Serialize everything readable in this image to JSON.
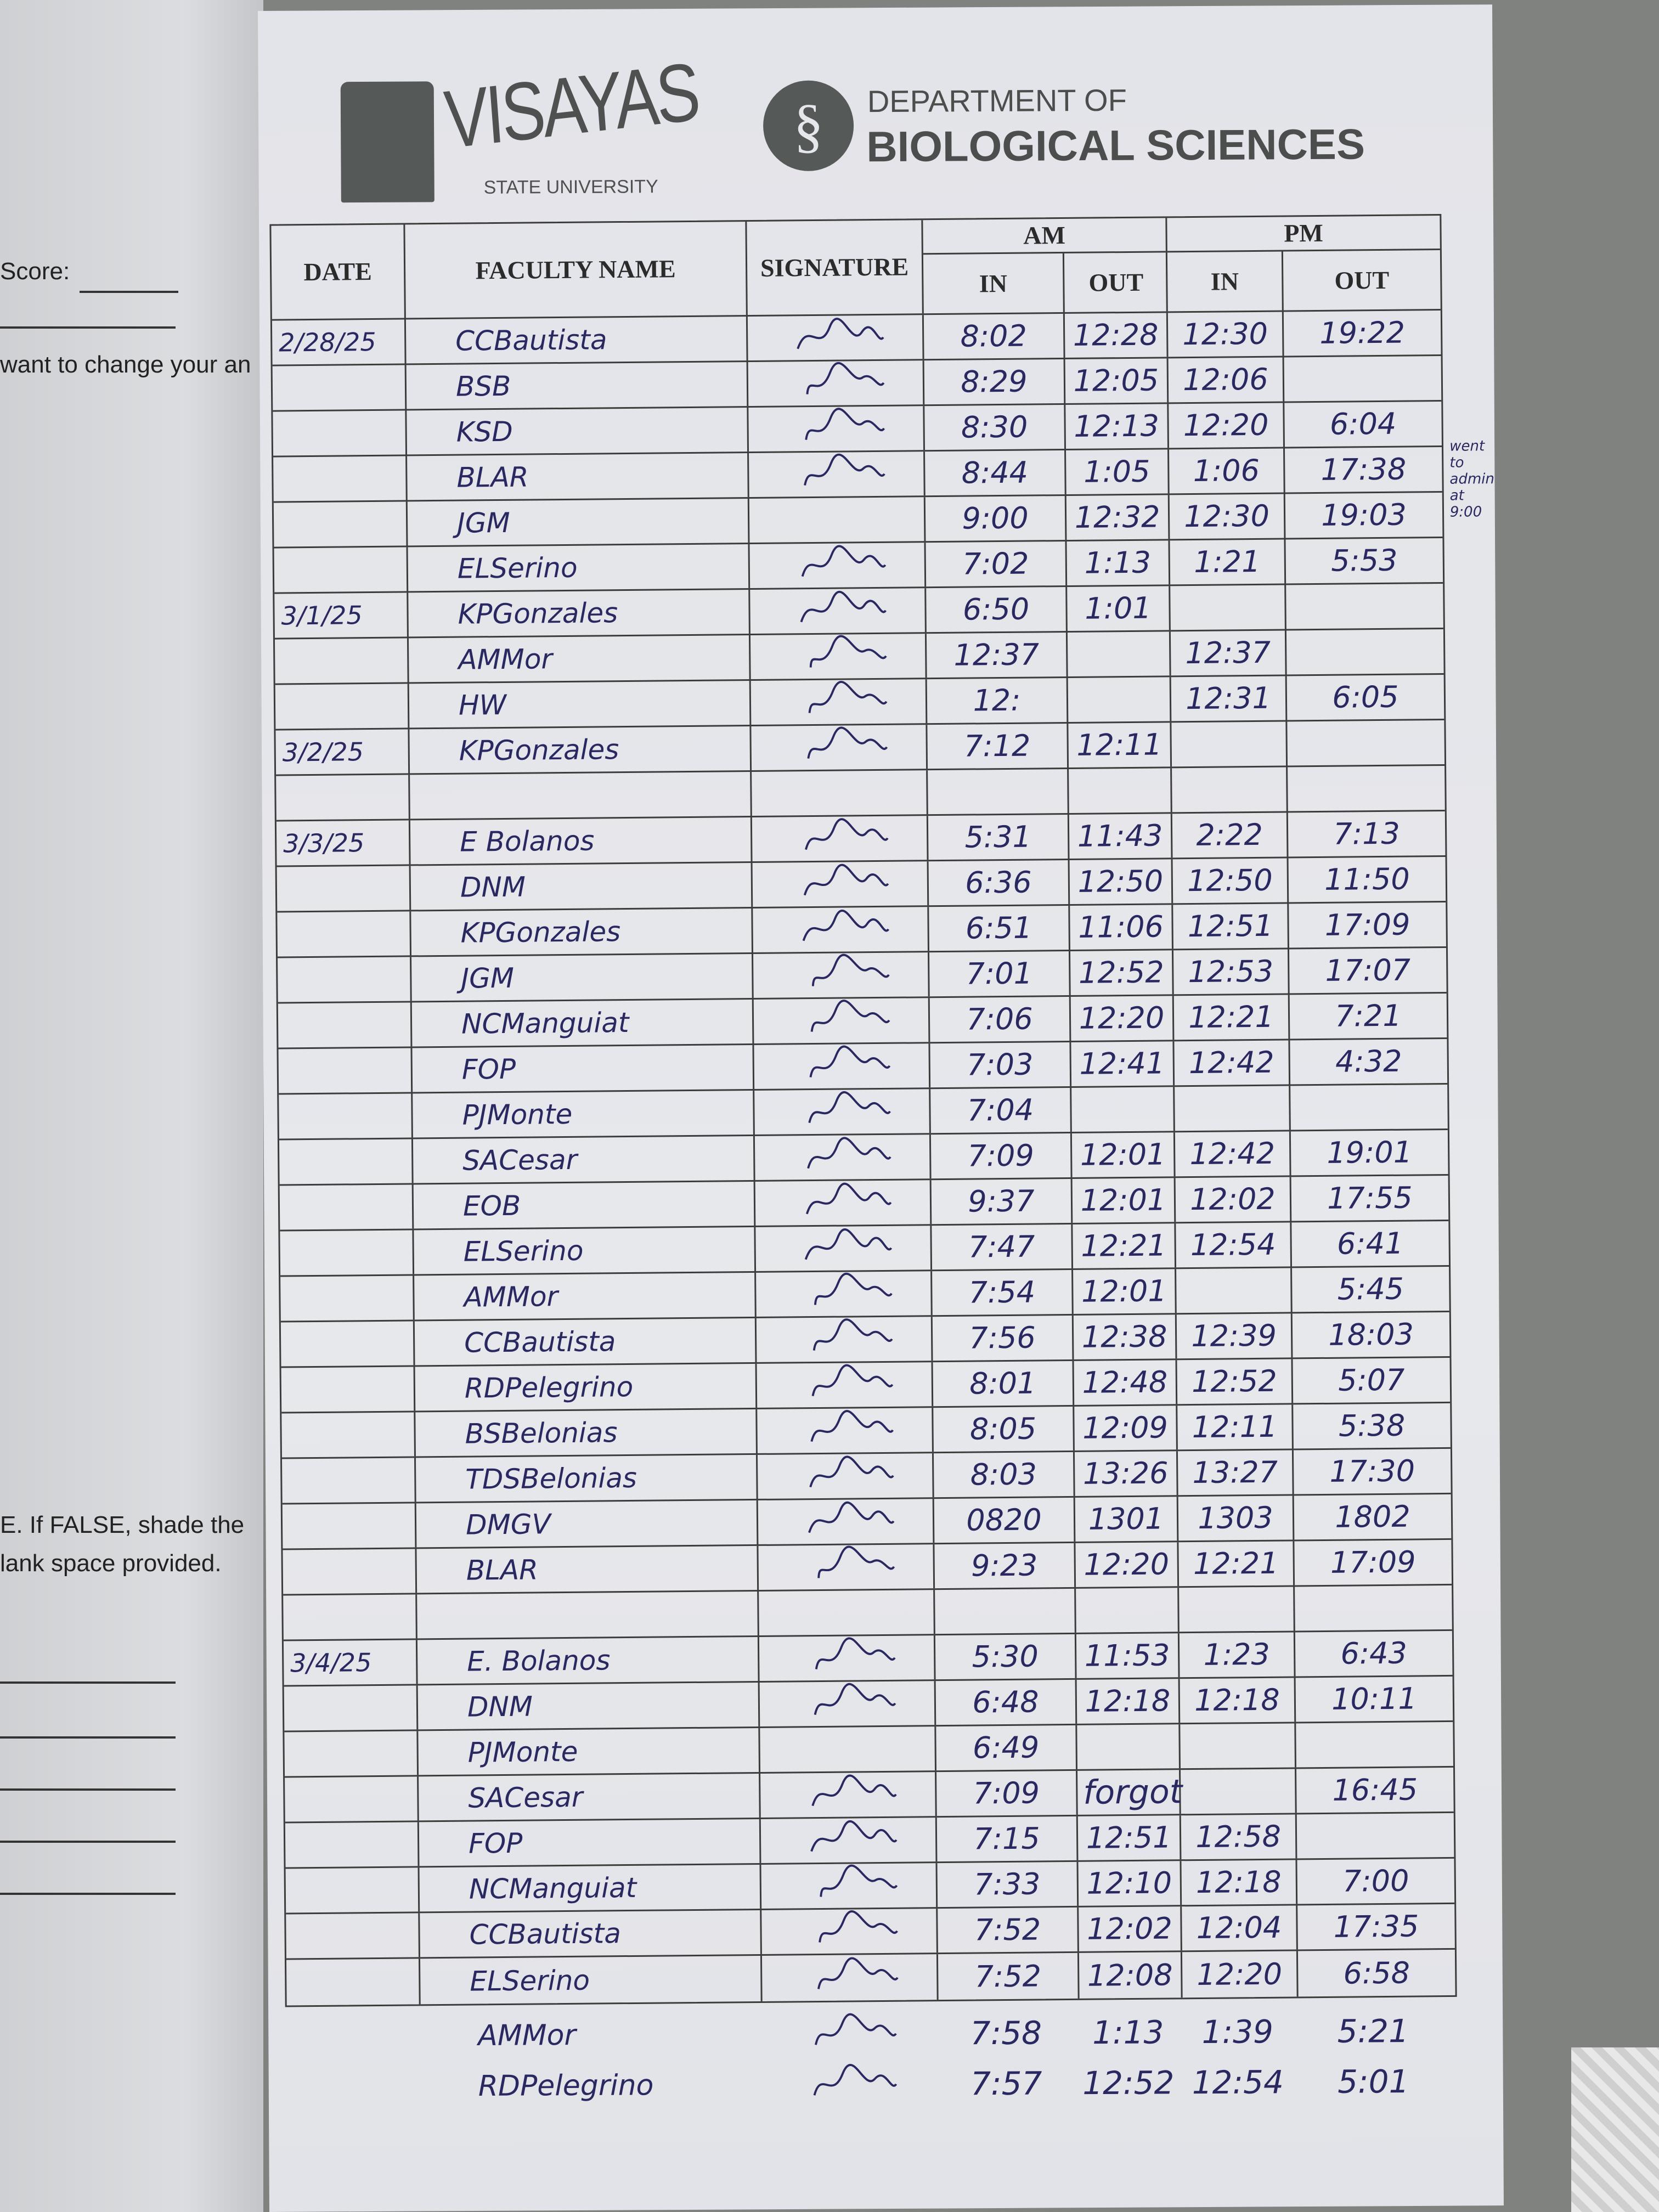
{
  "left_page": {
    "score_label": "Score:",
    "line1": "want to change your an",
    "line2": "E. If FALSE, shade the",
    "line3": "lank space provided."
  },
  "header": {
    "university_name": "VISAYAS",
    "university_sub": "STATE UNIVERSITY",
    "dept_line1": "DEPARTMENT OF",
    "dept_line2": "BIOLOGICAL SCIENCES"
  },
  "table": {
    "columns": {
      "date": "DATE",
      "faculty_name": "FACULTY NAME",
      "signature": "SIGNATURE",
      "am": "AM",
      "pm": "PM",
      "in": "IN",
      "out": "OUT"
    },
    "rows": [
      {
        "date": "2/28/25",
        "name": "CCBautista",
        "signed": true,
        "am_in": "8:02",
        "am_out": "12:28",
        "pm_in": "12:30",
        "pm_out": "19:22"
      },
      {
        "date": "",
        "name": "BSB",
        "signed": true,
        "am_in": "8:29",
        "am_out": "12:05",
        "pm_in": "12:06",
        "pm_out": ""
      },
      {
        "date": "",
        "name": "KSD",
        "signed": true,
        "am_in": "8:30",
        "am_out": "12:13",
        "pm_in": "12:20",
        "pm_out": "6:04"
      },
      {
        "date": "",
        "name": "BLAR",
        "signed": true,
        "am_in": "8:44",
        "am_out": "1:05",
        "pm_in": "1:06",
        "pm_out": "17:38"
      },
      {
        "date": "",
        "name": "JGM",
        "signed": false,
        "am_in": "9:00",
        "am_out": "12:32",
        "pm_in": "12:30",
        "pm_out": "19:03"
      },
      {
        "date": "",
        "name": "ELSerino",
        "signed": true,
        "am_in": "7:02",
        "am_out": "1:13",
        "pm_in": "1:21",
        "pm_out": "5:53"
      },
      {
        "date": "3/1/25",
        "name": "KPGonzales",
        "signed": true,
        "am_in": "6:50",
        "am_out": "1:01",
        "pm_in": "",
        "pm_out": ""
      },
      {
        "date": "",
        "name": "AMMor",
        "signed": true,
        "am_in": "12:37",
        "am_out": "",
        "pm_in": "12:37",
        "pm_out": ""
      },
      {
        "date": "",
        "name": "HW",
        "signed": true,
        "am_in": "12:",
        "am_out": "",
        "pm_in": "12:31",
        "pm_out": "6:05"
      },
      {
        "date": "3/2/25",
        "name": "KPGonzales",
        "signed": true,
        "am_in": "7:12",
        "am_out": "12:11",
        "pm_in": "",
        "pm_out": ""
      },
      {
        "date": "",
        "name": "",
        "signed": false,
        "am_in": "",
        "am_out": "",
        "pm_in": "",
        "pm_out": ""
      },
      {
        "date": "3/3/25",
        "name": "E Bolanos",
        "signed": true,
        "am_in": "5:31",
        "am_out": "11:43",
        "pm_in": "2:22",
        "pm_out": "7:13"
      },
      {
        "date": "",
        "name": "DNM",
        "signed": true,
        "am_in": "6:36",
        "am_out": "12:50",
        "pm_in": "12:50",
        "pm_out": "11:50"
      },
      {
        "date": "",
        "name": "KPGonzales",
        "signed": true,
        "am_in": "6:51",
        "am_out": "11:06",
        "pm_in": "12:51",
        "pm_out": "17:09"
      },
      {
        "date": "",
        "name": "JGM",
        "signed": true,
        "am_in": "7:01",
        "am_out": "12:52",
        "pm_in": "12:53",
        "pm_out": "17:07"
      },
      {
        "date": "",
        "name": "NCManguiat",
        "signed": true,
        "am_in": "7:06",
        "am_out": "12:20",
        "pm_in": "12:21",
        "pm_out": "7:21"
      },
      {
        "date": "",
        "name": "FOP",
        "signed": true,
        "am_in": "7:03",
        "am_out": "12:41",
        "pm_in": "12:42",
        "pm_out": "4:32"
      },
      {
        "date": "",
        "name": "PJMonte",
        "signed": true,
        "am_in": "7:04",
        "am_out": "",
        "pm_in": "",
        "pm_out": ""
      },
      {
        "date": "",
        "name": "SACesar",
        "signed": true,
        "am_in": "7:09",
        "am_out": "12:01",
        "pm_in": "12:42",
        "pm_out": "19:01"
      },
      {
        "date": "",
        "name": "EOB",
        "signed": true,
        "am_in": "9:37",
        "am_out": "12:01",
        "pm_in": "12:02",
        "pm_out": "17:55"
      },
      {
        "date": "",
        "name": "ELSerino",
        "signed": true,
        "am_in": "7:47",
        "am_out": "12:21",
        "pm_in": "12:54",
        "pm_out": "6:41"
      },
      {
        "date": "",
        "name": "AMMor",
        "signed": true,
        "am_in": "7:54",
        "am_out": "12:01",
        "pm_in": "",
        "pm_out": "5:45"
      },
      {
        "date": "",
        "name": "CCBautista",
        "signed": true,
        "am_in": "7:56",
        "am_out": "12:38",
        "pm_in": "12:39",
        "pm_out": "18:03"
      },
      {
        "date": "",
        "name": "RDPelegrino",
        "signed": true,
        "am_in": "8:01",
        "am_out": "12:48",
        "pm_in": "12:52",
        "pm_out": "5:07"
      },
      {
        "date": "",
        "name": "BSBelonias",
        "signed": true,
        "am_in": "8:05",
        "am_out": "12:09",
        "pm_in": "12:11",
        "pm_out": "5:38"
      },
      {
        "date": "",
        "name": "TDSBelonias",
        "signed": true,
        "am_in": "8:03",
        "am_out": "13:26",
        "pm_in": "13:27",
        "pm_out": "17:30"
      },
      {
        "date": "",
        "name": "DMGV",
        "signed": true,
        "am_in": "0820",
        "am_out": "1301",
        "pm_in": "1303",
        "pm_out": "1802"
      },
      {
        "date": "",
        "name": "BLAR",
        "signed": true,
        "am_in": "9:23",
        "am_out": "12:20",
        "pm_in": "12:21",
        "pm_out": "17:09"
      },
      {
        "date": "",
        "name": "",
        "signed": false,
        "am_in": "",
        "am_out": "",
        "pm_in": "",
        "pm_out": ""
      },
      {
        "date": "3/4/25",
        "name": "E. Bolanos",
        "signed": true,
        "am_in": "5:30",
        "am_out": "11:53",
        "pm_in": "1:23",
        "pm_out": "6:43"
      },
      {
        "date": "",
        "name": "DNM",
        "signed": true,
        "am_in": "6:48",
        "am_out": "12:18",
        "pm_in": "12:18",
        "pm_out": "10:11"
      },
      {
        "date": "",
        "name": "PJMonte",
        "signed": false,
        "am_in": "6:49",
        "am_out": "",
        "pm_in": "",
        "pm_out": ""
      },
      {
        "date": "",
        "name": "SACesar",
        "signed": true,
        "am_in": "7:09",
        "am_out": "",
        "pm_in": "",
        "pm_out": "16:45",
        "note": "forgot"
      },
      {
        "date": "",
        "name": "FOP",
        "signed": true,
        "am_in": "7:15",
        "am_out": "12:51",
        "pm_in": "12:58",
        "pm_out": ""
      },
      {
        "date": "",
        "name": "NCManguiat",
        "signed": true,
        "am_in": "7:33",
        "am_out": "12:10",
        "pm_in": "12:18",
        "pm_out": "7:00"
      },
      {
        "date": "",
        "name": "CCBautista",
        "signed": true,
        "am_in": "7:52",
        "am_out": "12:02",
        "pm_in": "12:04",
        "pm_out": "17:35"
      },
      {
        "date": "",
        "name": "ELSerino",
        "signed": true,
        "am_in": "7:52",
        "am_out": "12:08",
        "pm_in": "12:20",
        "pm_out": "6:58"
      }
    ],
    "below_table": [
      {
        "name": "AMMor",
        "signed": true,
        "am_in": "7:58",
        "am_out": "1:13",
        "pm_in": "1:39",
        "pm_out": "5:21"
      },
      {
        "name": "RDPelegrino",
        "signed": true,
        "am_in": "7:57",
        "am_out": "12:52",
        "pm_in": "12:54",
        "pm_out": "5:01"
      }
    ]
  },
  "margin_note": "went to admin at 9:00",
  "colors": {
    "ink": "#2a2860",
    "paper": "#e4e5ea",
    "print": "#3c3c3c"
  }
}
